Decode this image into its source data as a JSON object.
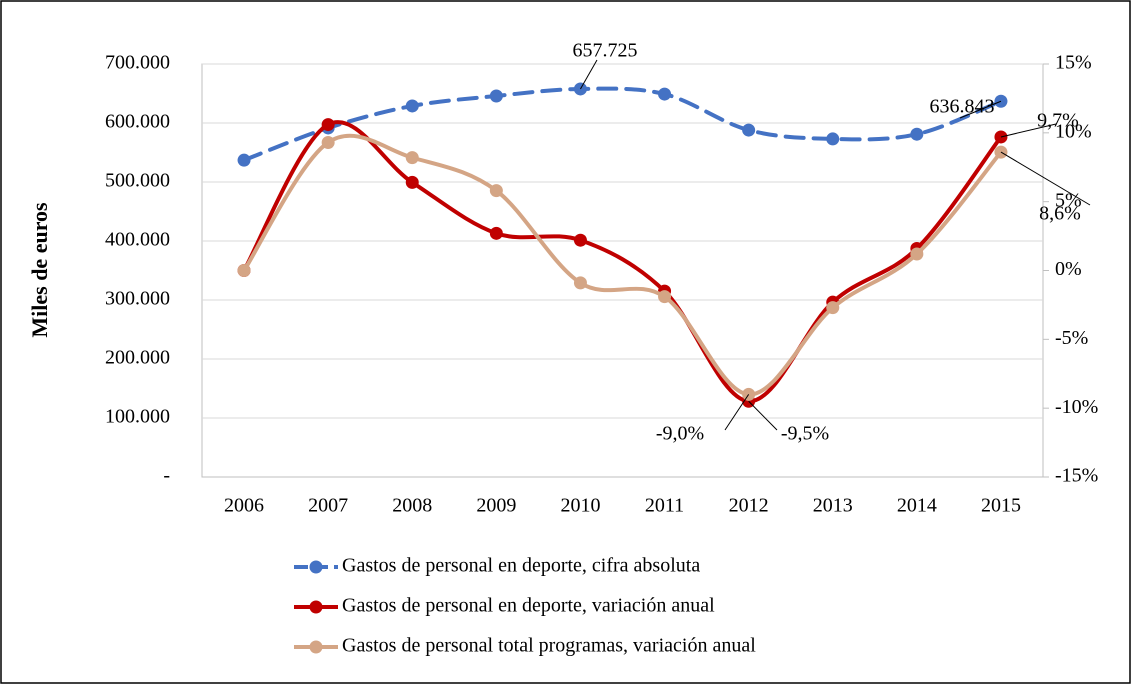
{
  "chart_data": {
    "type": "line",
    "y_label": "Miles de euros",
    "categories": [
      "2006",
      "2007",
      "2008",
      "2009",
      "2010",
      "2011",
      "2012",
      "2013",
      "2014",
      "2015"
    ],
    "series": [
      {
        "name": "Gastos de personal en deporte, cifra absoluta",
        "color": "#4472c4",
        "style": "dashed",
        "values": [
          537000,
          591600,
          628900,
          645800,
          657725,
          649000,
          588000,
          573000,
          581000,
          636843
        ],
        "value_labels": [
          null,
          null,
          null,
          null,
          "657.725",
          null,
          null,
          null,
          null,
          "636.843"
        ]
      },
      {
        "name": "Gastos de personal en deporte, variación anual",
        "color": "#c00000",
        "style": "solid",
        "axis": "y2",
        "values": [
          0,
          10.6,
          6.4,
          2.7,
          2.2,
          -1.5,
          -9.5,
          -2.3,
          1.6,
          9.7
        ],
        "value_labels": [
          null,
          null,
          null,
          null,
          null,
          null,
          "-9,5%",
          null,
          null,
          "9,7%"
        ]
      },
      {
        "name": "Gastos de personal total programas, variación anual",
        "color": "#d4a585",
        "style": "solid",
        "axis": "y2",
        "values": [
          0,
          9.3,
          8.2,
          5.8,
          -0.9,
          -1.9,
          -9.0,
          -2.7,
          1.2,
          8.6
        ],
        "value_labels": [
          null,
          null,
          null,
          null,
          null,
          null,
          "-9,0%",
          null,
          null,
          "8,6%"
        ]
      }
    ],
    "ylim": [
      0,
      700000
    ],
    "yticks": [
      {
        "value": 0,
        "label": "-"
      },
      {
        "value": 100000,
        "label": "100.000"
      },
      {
        "value": 200000,
        "label": "200.000"
      },
      {
        "value": 300000,
        "label": "300.000"
      },
      {
        "value": 400000,
        "label": "400.000"
      },
      {
        "value": 500000,
        "label": "500.000"
      },
      {
        "value": 600000,
        "label": "600.000"
      },
      {
        "value": 700000,
        "label": "700.000"
      }
    ],
    "y2lim": [
      -15,
      15
    ],
    "y2ticks": [
      {
        "value": -15,
        "label": "-15%"
      },
      {
        "value": -10,
        "label": "-10%"
      },
      {
        "value": -5,
        "label": "-5%"
      },
      {
        "value": 0,
        "label": "0%"
      },
      {
        "value": 5,
        "label": "5%"
      },
      {
        "value": 10,
        "label": "10%"
      },
      {
        "value": 15,
        "label": "15%"
      }
    ],
    "grid": true,
    "legend": "bottom"
  }
}
